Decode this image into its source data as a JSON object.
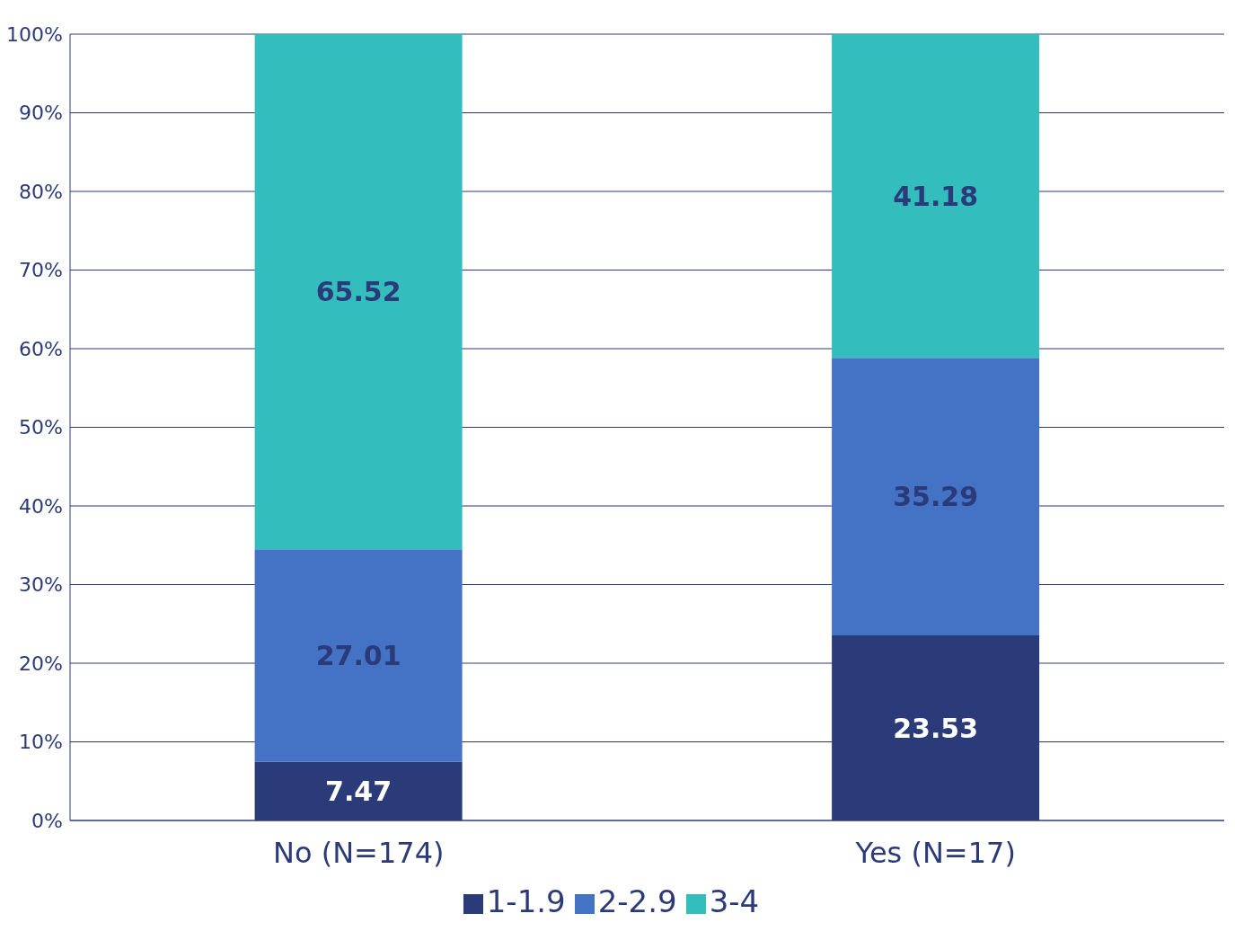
{
  "chart_data": {
    "type": "bar",
    "stacked": true,
    "categories": [
      "No (N=174)",
      "Yes (N=17)"
    ],
    "series": [
      {
        "name": "1-1.9",
        "color": "#2b3a78",
        "values": [
          7.47,
          23.53
        ]
      },
      {
        "name": "2-2.9",
        "color": "#4472c4",
        "values": [
          27.01,
          35.29
        ]
      },
      {
        "name": "3-4",
        "color": "#33bdbd",
        "values": [
          65.52,
          41.18
        ]
      }
    ],
    "ylim": [
      0,
      100
    ],
    "yticks": [
      {
        "value": 0,
        "label": "0%"
      },
      {
        "value": 10,
        "label": "10%"
      },
      {
        "value": 20,
        "label": "20%"
      },
      {
        "value": 30,
        "label": "30%"
      },
      {
        "value": 40,
        "label": "40%"
      },
      {
        "value": 50,
        "label": "50%"
      },
      {
        "value": 60,
        "label": "60%"
      },
      {
        "value": 70,
        "label": "70%"
      },
      {
        "value": 80,
        "label": "80%"
      },
      {
        "value": 90,
        "label": "90%"
      },
      {
        "value": 100,
        "label": "100%"
      }
    ],
    "grid": "y",
    "legend": "bottom",
    "data_labels": true
  }
}
